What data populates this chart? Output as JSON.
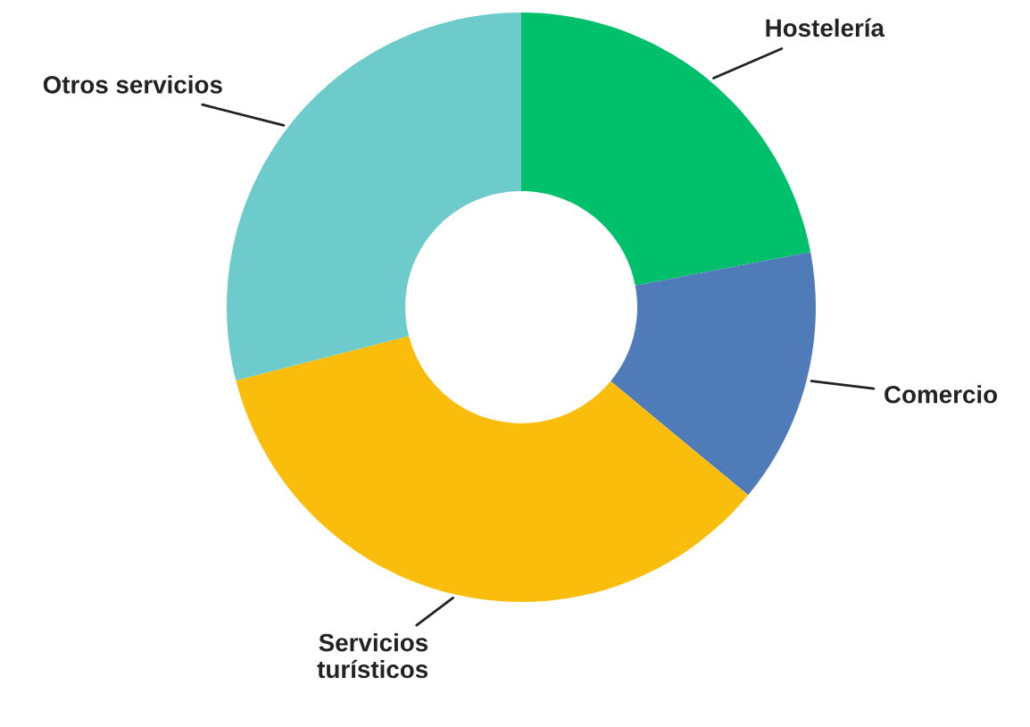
{
  "chart_data": {
    "type": "donut",
    "categories": [
      "Hostelería",
      "Comercio",
      "Servicios\nturísticos",
      "Otros servicios"
    ],
    "values": [
      22,
      14,
      35,
      29
    ],
    "colors": [
      "#00c06b",
      "#4f7bb8",
      "#fbbd0c",
      "#6ecbcb"
    ],
    "legend": false
  }
}
